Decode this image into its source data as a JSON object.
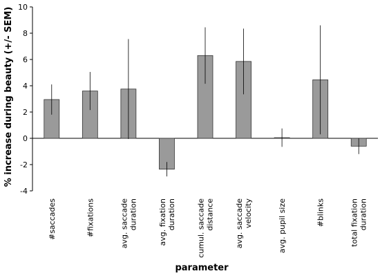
{
  "chart_data": {
    "type": "bar",
    "xlabel": "parameter",
    "ylabel": "% increase during beauty (+/- SEM)",
    "ylim": [
      -4,
      10
    ],
    "yticks": [
      -4,
      -2,
      0,
      2,
      4,
      6,
      8,
      10
    ],
    "categories": [
      [
        "#saccades"
      ],
      [
        "#fixations"
      ],
      [
        "avg. saccade",
        "duration"
      ],
      [
        "avg. fixation",
        "duration"
      ],
      [
        "cumul. saccade",
        "distance"
      ],
      [
        "avg. saccade",
        "velocity"
      ],
      [
        "avg. pupil size"
      ],
      [
        "#blinks"
      ],
      [
        "total fixation",
        "duration"
      ]
    ],
    "values": [
      2.95,
      3.6,
      3.75,
      -2.35,
      6.3,
      5.85,
      0.05,
      4.45,
      -0.6
    ],
    "errors": [
      1.15,
      1.45,
      3.8,
      0.55,
      2.15,
      2.5,
      0.7,
      4.15,
      0.6
    ],
    "bar_color": "#9a9a9a",
    "grid": false
  }
}
